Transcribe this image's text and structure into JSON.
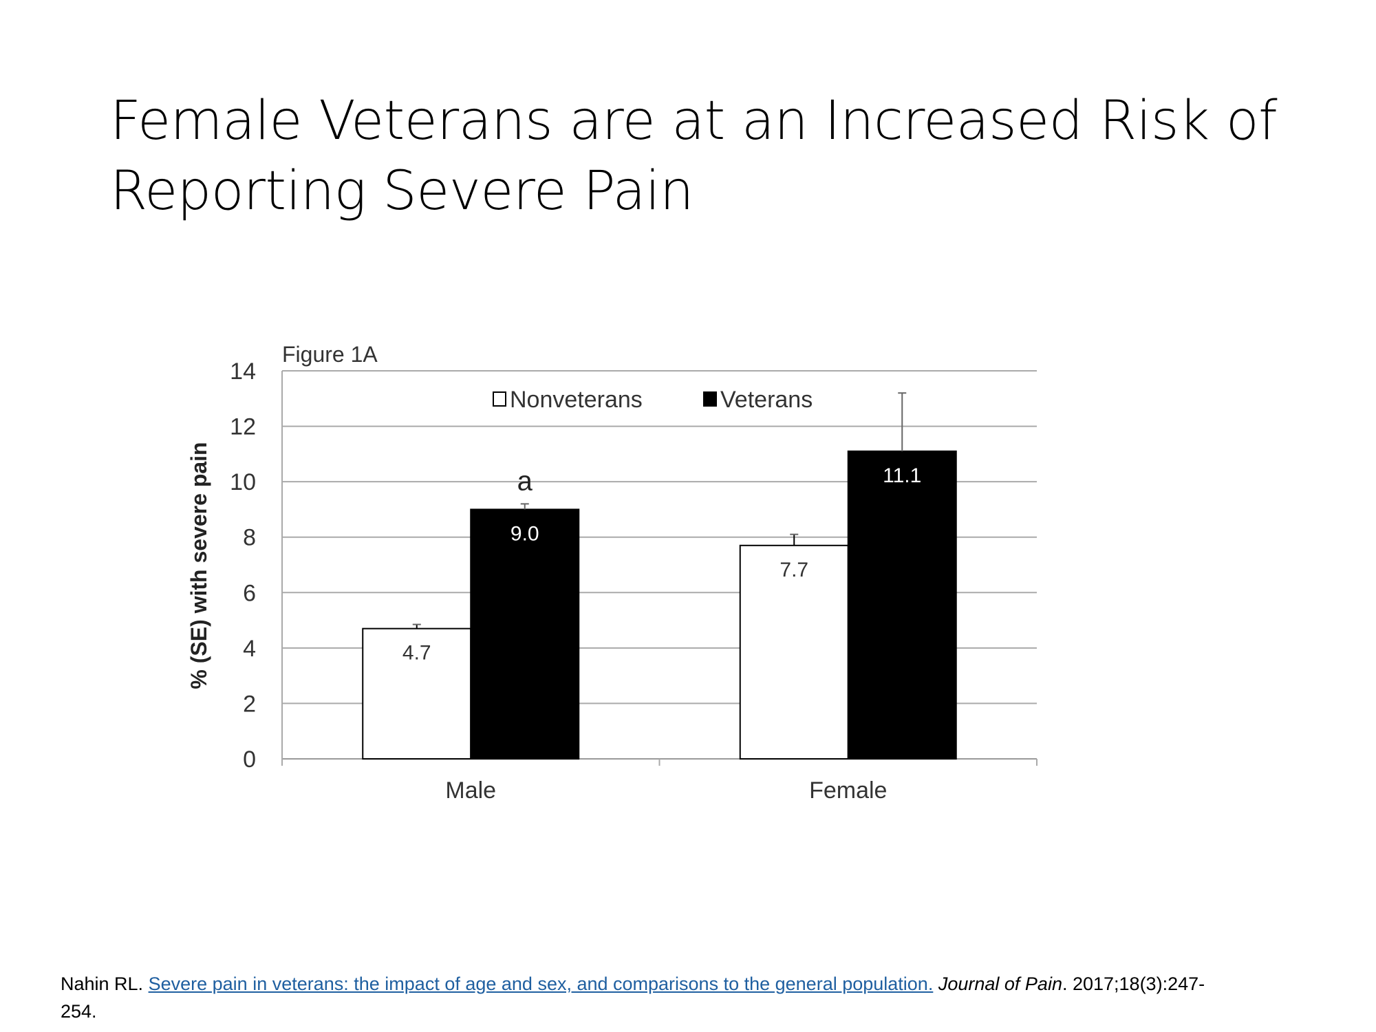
{
  "slide": {
    "title": "Female Veterans are at an Increased Risk of Reporting Severe Pain",
    "citation": {
      "author": "Nahin RL.",
      "link_text": "Severe pain in veterans: the impact of age and sex, and comparisons to the general population.",
      "journal": "Journal of Pain",
      "details": ". 2017;18(3):247-254."
    }
  },
  "chart_data": {
    "type": "bar",
    "title": "Figure 1A",
    "xlabel": "",
    "ylabel": "% (SE) with severe pain",
    "categories": [
      "Male",
      "Female"
    ],
    "ylim": [
      0,
      14
    ],
    "yticks": [
      "0",
      "2",
      "4",
      "6",
      "8",
      "10",
      "12",
      "14"
    ],
    "grid": true,
    "legend_position": "top-center",
    "series": [
      {
        "name": "Nonveterans",
        "values": [
          4.7,
          7.7
        ],
        "se_upper": [
          4.85,
          8.1
        ],
        "labels": [
          "4.7",
          "7.7"
        ],
        "color": "#ffffff"
      },
      {
        "name": "Veterans",
        "values": [
          9.0,
          11.1
        ],
        "se_upper": [
          9.2,
          13.2
        ],
        "labels": [
          "9.0",
          "11.1"
        ],
        "color": "#000000"
      }
    ],
    "annotations": [
      {
        "category": "Male",
        "series": "Veterans",
        "text": "a"
      }
    ]
  }
}
